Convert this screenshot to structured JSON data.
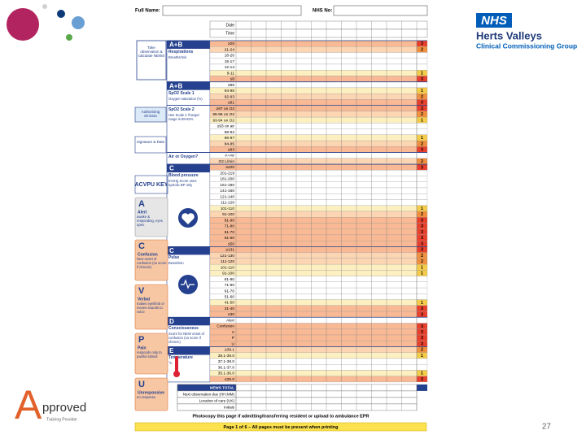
{
  "header": {
    "full_name": "Full Name:",
    "nhs_no": "NHS No:"
  },
  "logo": {
    "nhs": "NHS",
    "line1": "Herts Valleys",
    "line2": "Clinical Commissioning Group"
  },
  "approved": {
    "letter": "A",
    "word": "pproved",
    "sub": "Training Provider"
  },
  "sidebar": {
    "take_obs": "Take observation & calculate NEWS",
    "authorising": "Authorising clinician",
    "signature": "Signature & Date"
  },
  "acvpu": {
    "title": "ACVPU KEY",
    "items": [
      {
        "letter": "A",
        "name": "Alert",
        "desc": "awake & responding, eyes open"
      },
      {
        "letter": "C",
        "name": "Confusion",
        "desc": "New onset of confusion (no score if chronic)"
      },
      {
        "letter": "V",
        "name": "Verbal",
        "desc": "makes eye/limb or moves sounds to voice"
      },
      {
        "letter": "P",
        "name": "Pain",
        "desc": "responds only to painful stimuli"
      },
      {
        "letter": "U",
        "name": "Unresponsive",
        "desc": "no response"
      }
    ]
  },
  "chart": {
    "date_label": "Date",
    "time_label": "Time",
    "sections": [
      {
        "letter": "A+B",
        "title": "Respirations",
        "subtitle": "Breaths/min",
        "rows": [
          {
            "range": "≥25",
            "score": 3
          },
          {
            "range": "21-24",
            "score": 2
          },
          {
            "range": "18-20",
            "score": null
          },
          {
            "range": "15-17",
            "score": null
          },
          {
            "range": "12-14",
            "score": null
          },
          {
            "range": "9-11",
            "score": 1
          },
          {
            "range": "≤8",
            "score": 3
          }
        ]
      },
      {
        "letter": "A+B",
        "title": "SpO2 Scale 1",
        "subtitle": "Oxygen saturation (%)",
        "rows": [
          {
            "range": "≥96",
            "score": null
          },
          {
            "range": "94-95",
            "score": 1
          },
          {
            "range": "92-93",
            "score": 2
          },
          {
            "range": "≤91",
            "score": 3
          }
        ]
      },
      {
        "letter": null,
        "title": "SpO2 Scale 2",
        "subtitle": "Use Scale 2 if target range is 88-92%",
        "rows": [
          {
            "range": "≥97 on O2",
            "score": 3
          },
          {
            "range": "95-96 on O2",
            "score": 2
          },
          {
            "range": "93-94 on O2",
            "score": 1
          },
          {
            "range": "≥93 on air",
            "score": null
          },
          {
            "range": "88-92",
            "score": null
          },
          {
            "range": "86-87",
            "score": 1
          },
          {
            "range": "84-85",
            "score": 2
          },
          {
            "range": "≤83",
            "score": 3
          }
        ]
      },
      {
        "letter": null,
        "title": "Air or Oxygen?",
        "subtitle": null,
        "rows": [
          {
            "range": "A=Air",
            "score": null
          },
          {
            "range": "O2 L/min",
            "score": 2
          }
        ]
      },
      {
        "letter": "C",
        "title": "Blood pressure",
        "subtitle": "mmHg Score uses systolic BP only",
        "rows": [
          {
            "range": "≥220",
            "score": 3
          },
          {
            "range": "201-219",
            "score": null
          },
          {
            "range": "181-200",
            "score": null
          },
          {
            "range": "161-180",
            "score": null
          },
          {
            "range": "141-160",
            "score": null
          },
          {
            "range": "121-140",
            "score": null
          },
          {
            "range": "111-120",
            "score": null
          },
          {
            "range": "101-110",
            "score": 1
          },
          {
            "range": "91-100",
            "score": 2
          },
          {
            "range": "81-90",
            "score": 3
          },
          {
            "range": "71-80",
            "score": 3
          },
          {
            "range": "61-70",
            "score": 3
          },
          {
            "range": "51-60",
            "score": 3
          },
          {
            "range": "≤50",
            "score": 3
          }
        ]
      },
      {
        "letter": "C",
        "title": "Pulse",
        "subtitle": "Beats/min",
        "rows": [
          {
            "range": "≥131",
            "score": 3
          },
          {
            "range": "121-130",
            "score": 2
          },
          {
            "range": "111-120",
            "score": 2
          },
          {
            "range": "101-110",
            "score": 1
          },
          {
            "range": "91-100",
            "score": 1
          },
          {
            "range": "81-90",
            "score": null
          },
          {
            "range": "71-80",
            "score": null
          },
          {
            "range": "61-70",
            "score": null
          },
          {
            "range": "51-60",
            "score": null
          },
          {
            "range": "41-50",
            "score": 1
          },
          {
            "range": "31-40",
            "score": 3
          },
          {
            "range": "≤30",
            "score": 3
          }
        ]
      },
      {
        "letter": "D",
        "title": "Consciousness",
        "subtitle": "Score for NEW onset of confusion (no score if chronic)",
        "rows": [
          {
            "range": "Alert",
            "score": null
          },
          {
            "range": "Confusion",
            "score": 3
          },
          {
            "range": "V",
            "score": 3
          },
          {
            "range": "P",
            "score": 3
          },
          {
            "range": "U",
            "score": 3
          }
        ]
      },
      {
        "letter": "E",
        "title": "Temperature",
        "subtitle": "°C",
        "rows": [
          {
            "range": "≥39.1",
            "score": 2
          },
          {
            "range": "38.1-39.0",
            "score": 1
          },
          {
            "range": "37.1-38.0",
            "score": null
          },
          {
            "range": "36.1-37.0",
            "score": null
          },
          {
            "range": "35.1-36.0",
            "score": 1
          },
          {
            "range": "≤35.0",
            "score": 3
          }
        ]
      }
    ],
    "news_total": "NEWS TOTAL",
    "next_obs": "Next observation due (HH:MM)",
    "location": "Location of care (UK)",
    "initials": "Initials"
  },
  "footer": {
    "photocopy": "Photocopy this page if admitting/transferring resident or upload to ambulance EPR",
    "pages": "Page 1 of 6 – All pages must be present when printing"
  },
  "page_number": 27
}
